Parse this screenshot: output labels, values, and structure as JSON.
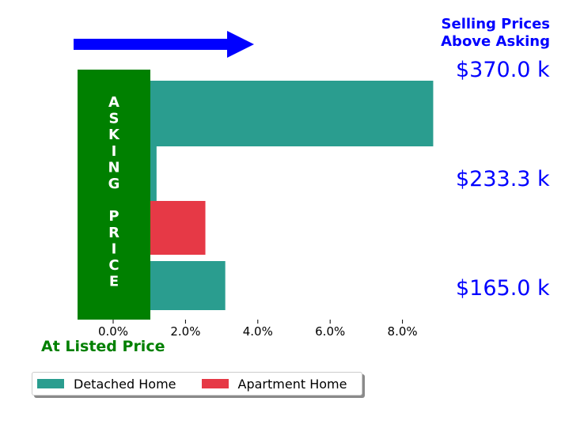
{
  "chart_data": {
    "type": "bar",
    "orientation": "horizontal",
    "header": [
      "Selling Prices",
      "Above Asking"
    ],
    "price_labels": [
      "$370.0 k",
      "$233.3 k",
      "$165.0 k"
    ],
    "band_label": "ASKING PRICE",
    "band_letters": [
      "A",
      "S",
      "K",
      "I",
      "N",
      "G",
      "",
      "P",
      "R",
      "I",
      "C",
      "E"
    ],
    "footer_label": "At Listed Price",
    "x_ticks": [
      "0.0%",
      "2.0%",
      "4.0%",
      "6.0%",
      "8.0%"
    ],
    "x_tick_values": [
      0,
      2,
      4,
      6,
      8
    ],
    "xlim": [
      -1.0,
      9.0
    ],
    "series": [
      {
        "name": "Detached Home",
        "color": "#2a9d8f",
        "values": [
          8.85,
          1.2,
          3.1
        ]
      },
      {
        "name": "Apartment Home",
        "color": "#e63946",
        "values": [
          null,
          2.55,
          null
        ]
      }
    ],
    "legend": [
      {
        "name": "Detached Home",
        "color": "#2a9d8f"
      },
      {
        "name": "Apartment Home",
        "color": "#e63946"
      }
    ],
    "colors": {
      "band": "#008000",
      "arrow": "#0000ff",
      "header": "#0000ff",
      "footer": "#008000"
    }
  }
}
